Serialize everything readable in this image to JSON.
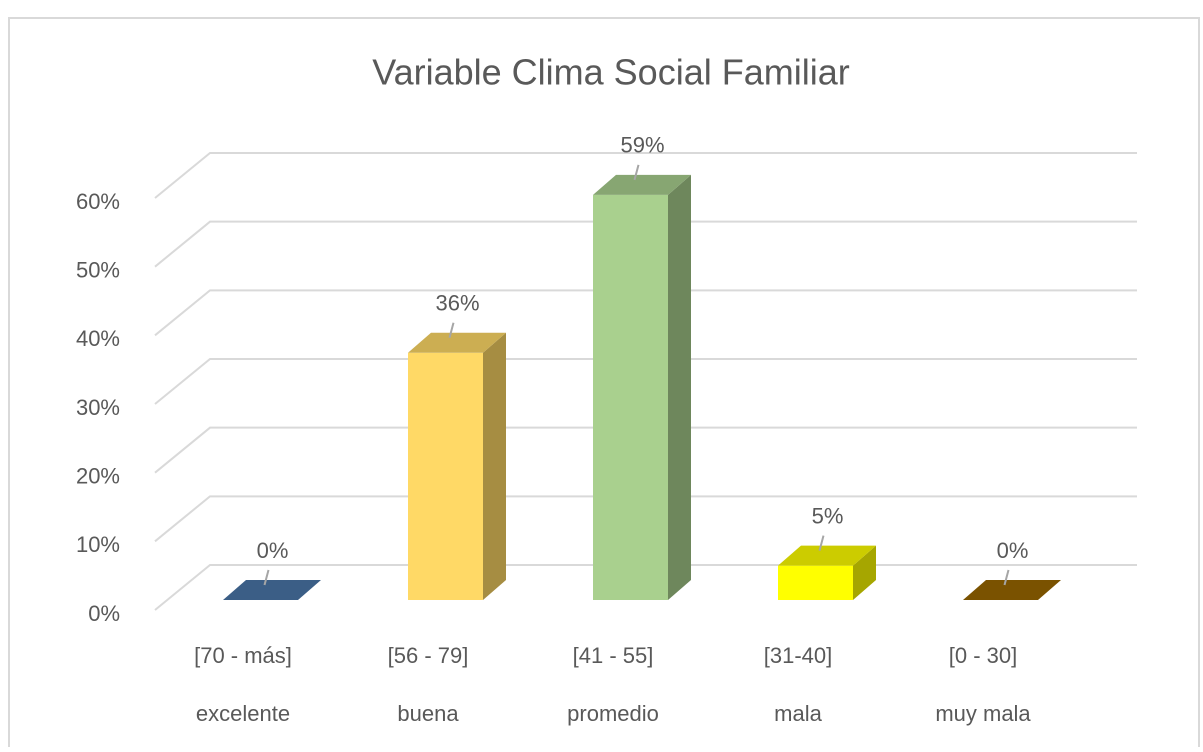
{
  "chart_data": {
    "type": "bar3d",
    "title": "Variable Clima Social Familiar",
    "categories": [
      "[70 - más]",
      "[56 - 79]",
      "[41 - 55]",
      "[31-40]",
      "[0 - 30]"
    ],
    "sublabels": [
      "excelente",
      "buena",
      "promedio",
      "mala",
      "muy mala"
    ],
    "values": [
      0,
      36,
      59,
      5,
      0
    ],
    "value_labels": [
      "0%",
      "36%",
      "59%",
      "5%",
      "0%"
    ],
    "colors": [
      "#4a76a8",
      "#ffd966",
      "#a9d08e",
      "#ffff00",
      "#996600"
    ],
    "ylim": [
      0,
      60
    ],
    "yticks": [
      {
        "value": 0,
        "label": "0%"
      },
      {
        "value": 10,
        "label": "10%"
      },
      {
        "value": 20,
        "label": "20%"
      },
      {
        "value": 30,
        "label": "30%"
      },
      {
        "value": 40,
        "label": "40%"
      },
      {
        "value": 50,
        "label": "50%"
      },
      {
        "value": 60,
        "label": "60%"
      }
    ],
    "grid": true
  }
}
